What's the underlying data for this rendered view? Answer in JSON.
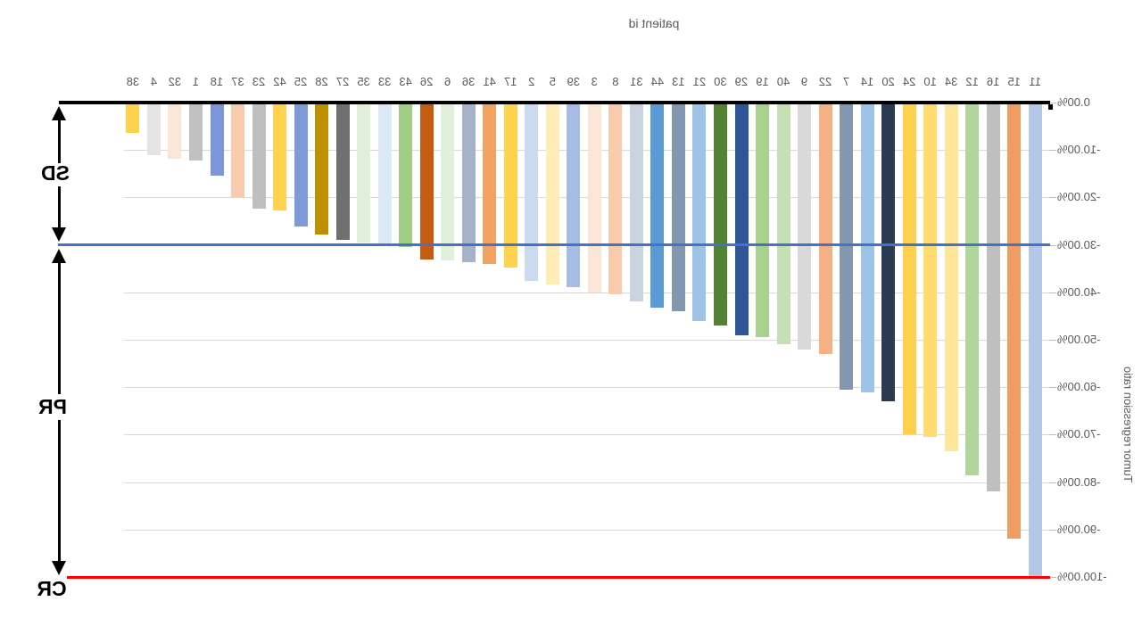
{
  "chart_data": {
    "type": "bar",
    "title": "patient id",
    "ylabel": "Tumor regression ratio",
    "ylim": [
      -100,
      0
    ],
    "grid": true,
    "orientation": "mirrored-horizontally",
    "yticks": [
      "0.00%",
      "-10.00%",
      "-20.00%",
      "-30.00%",
      "-40.00%",
      "-50.00%",
      "-60.00%",
      "-70.00%",
      "-80.00%",
      "-90.00%",
      "-100.00%"
    ],
    "bars": [
      {
        "id": "11",
        "value": -100.0,
        "color": "#b4c7e7"
      },
      {
        "id": "15",
        "value": -92.0,
        "color": "#ef9d62"
      },
      {
        "id": "16",
        "value": -82.0,
        "color": "#bfbfbf"
      },
      {
        "id": "12",
        "value": -78.5,
        "color": "#b0d69b"
      },
      {
        "id": "34",
        "value": -73.5,
        "color": "#ffe699"
      },
      {
        "id": "10",
        "value": -70.5,
        "color": "#ffdb70"
      },
      {
        "id": "24",
        "value": -70.0,
        "color": "#ffcf4d"
      },
      {
        "id": "20",
        "value": -63.0,
        "color": "#2a3a50"
      },
      {
        "id": "14",
        "value": -61.0,
        "color": "#9dc3e6"
      },
      {
        "id": "7",
        "value": -60.5,
        "color": "#8497b0"
      },
      {
        "id": "22",
        "value": -53.0,
        "color": "#f4b183"
      },
      {
        "id": "9",
        "value": -52.0,
        "color": "#d9d9d9"
      },
      {
        "id": "40",
        "value": -51.0,
        "color": "#c5e0b4"
      },
      {
        "id": "19",
        "value": -49.5,
        "color": "#a9d18e"
      },
      {
        "id": "29",
        "value": -49.0,
        "color": "#2e5597"
      },
      {
        "id": "30",
        "value": -47.0,
        "color": "#548235"
      },
      {
        "id": "21",
        "value": -46.0,
        "color": "#9dc3e6"
      },
      {
        "id": "13",
        "value": -44.0,
        "color": "#8497b0"
      },
      {
        "id": "44",
        "value": -43.3,
        "color": "#5b9bd5"
      },
      {
        "id": "31",
        "value": -42.0,
        "color": "#cbd3e1"
      },
      {
        "id": "8",
        "value": -40.5,
        "color": "#f8cbad"
      },
      {
        "id": "3",
        "value": -40.0,
        "color": "#fbe5d6"
      },
      {
        "id": "39",
        "value": -39.0,
        "color": "#a6bce4"
      },
      {
        "id": "5",
        "value": -38.3,
        "color": "#ffedb8"
      },
      {
        "id": "2",
        "value": -37.5,
        "color": "#ccdaf0"
      },
      {
        "id": "17",
        "value": -34.7,
        "color": "#ffd34d"
      },
      {
        "id": "41",
        "value": -34.0,
        "color": "#f4a261"
      },
      {
        "id": "36",
        "value": -33.6,
        "color": "#a6b3ca"
      },
      {
        "id": "6",
        "value": -33.3,
        "color": "#e2efda"
      },
      {
        "id": "26",
        "value": -33.0,
        "color": "#c55a11"
      },
      {
        "id": "43",
        "value": -30.5,
        "color": "#a0ce85"
      },
      {
        "id": "33",
        "value": -30.0,
        "color": "#dbe9f7"
      },
      {
        "id": "35",
        "value": -29.6,
        "color": "#e2efda"
      },
      {
        "id": "27",
        "value": -29.0,
        "color": "#707070"
      },
      {
        "id": "28",
        "value": -27.9,
        "color": "#bf8f00"
      },
      {
        "id": "25",
        "value": -26.2,
        "color": "#7f9ad8"
      },
      {
        "id": "42",
        "value": -22.7,
        "color": "#ffd34d"
      },
      {
        "id": "23",
        "value": -22.3,
        "color": "#bfbfbf"
      },
      {
        "id": "37",
        "value": -20.0,
        "color": "#f8cbad"
      },
      {
        "id": "18",
        "value": -15.4,
        "color": "#7b97d9"
      },
      {
        "id": "1",
        "value": -12.3,
        "color": "#c0c0c0"
      },
      {
        "id": "32",
        "value": -11.9,
        "color": "#fbe5d6"
      },
      {
        "id": "4",
        "value": -11.1,
        "color": "#e4e4e4"
      },
      {
        "id": "38",
        "value": -6.3,
        "color": "#ffd24d"
      }
    ],
    "reference_lines": [
      {
        "label": "SD",
        "value": -30,
        "color": "#4472c4"
      },
      {
        "label": "CR",
        "value": -100,
        "color": "#ff0000"
      }
    ],
    "annotations": {
      "sd_label": "SD",
      "pr_label": "PR",
      "cr_label": "CR"
    },
    "colors": {
      "axis_text": "#595959",
      "axis_line": "#000000",
      "gridline": "#d9d9d9",
      "sd_line": "#4472c4",
      "cr_line": "#ff0000"
    },
    "legend_position": "none"
  }
}
